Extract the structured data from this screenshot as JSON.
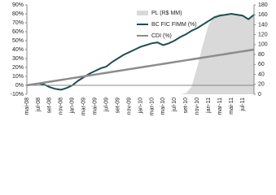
{
  "chart_data": {
    "type": "line",
    "categories": [
      "mai-08",
      null,
      "jul-08",
      null,
      "set-08",
      null,
      "nov-08",
      null,
      "jan-09",
      null,
      "mar-09",
      null,
      "mai-09",
      null,
      "jul-09",
      null,
      "set-09",
      null,
      "nov-09",
      null,
      "jan-10",
      null,
      "mar-10",
      null,
      "mai-10",
      null,
      "jul-10",
      null,
      "set-10",
      null,
      "nov-10",
      null,
      "jan-11",
      null,
      "mar-11",
      null,
      "mai-11",
      null,
      "jul-11",
      null,
      null
    ],
    "series": [
      {
        "name": "PL (R$ MM)",
        "kind": "area",
        "axis": "y2",
        "color": "#d9d9d9",
        "values": [
          0,
          0,
          0,
          0,
          0,
          0,
          0,
          0,
          0,
          0,
          0,
          0,
          0,
          0,
          0,
          0,
          0,
          0,
          0,
          0,
          0,
          0,
          0,
          0,
          0,
          0,
          0,
          0,
          2,
          15,
          55,
          100,
          140,
          158,
          162,
          160,
          161,
          160,
          158,
          150,
          160
        ]
      },
      {
        "name": "BC FIC FIMM (%)",
        "kind": "line",
        "axis": "y",
        "color": "#1f4e4e",
        "values": [
          0,
          1,
          2,
          1,
          -2,
          -4,
          -5,
          -3,
          0,
          5,
          9,
          13,
          16,
          19,
          21,
          26,
          30,
          34,
          37,
          40,
          43,
          45,
          47,
          48,
          45,
          47,
          50,
          54,
          57,
          61,
          64,
          68,
          72,
          76,
          78,
          79,
          80,
          79,
          78,
          74,
          79
        ]
      },
      {
        "name": "CDI (%)",
        "kind": "line",
        "axis": "y",
        "color": "#8c8c8c",
        "values": [
          0,
          1,
          2,
          3,
          4,
          5,
          6,
          7,
          8,
          9,
          10,
          11,
          12,
          13,
          14,
          15,
          16,
          17,
          18,
          19,
          20,
          21,
          22,
          23,
          24,
          25,
          26,
          27,
          28,
          29,
          30,
          31,
          32,
          33,
          34,
          35,
          36,
          37,
          38,
          39,
          40
        ]
      }
    ],
    "ylim": [
      -10,
      90
    ],
    "yticks": [
      {
        "value": -10,
        "label": "-10%"
      },
      {
        "value": 0,
        "label": "0%"
      },
      {
        "value": 10,
        "label": "10%"
      },
      {
        "value": 20,
        "label": "20%"
      },
      {
        "value": 30,
        "label": "30%"
      },
      {
        "value": 40,
        "label": "40%"
      },
      {
        "value": 50,
        "label": "50%"
      },
      {
        "value": 60,
        "label": "60%"
      },
      {
        "value": 70,
        "label": "70%"
      },
      {
        "value": 80,
        "label": "80%"
      },
      {
        "value": 90,
        "label": "90%"
      }
    ],
    "y2lim": [
      0,
      180
    ],
    "y2ticks": [
      0,
      20,
      40,
      60,
      80,
      100,
      120,
      140,
      160,
      180
    ],
    "legend": "top-center"
  }
}
